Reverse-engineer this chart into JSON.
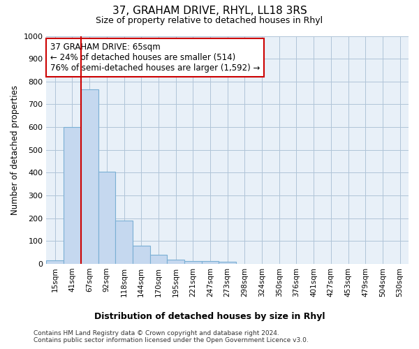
{
  "title": "37, GRAHAM DRIVE, RHYL, LL18 3RS",
  "subtitle": "Size of property relative to detached houses in Rhyl",
  "xlabel": "Distribution of detached houses by size in Rhyl",
  "ylabel": "Number of detached properties",
  "categories": [
    "15sqm",
    "41sqm",
    "67sqm",
    "92sqm",
    "118sqm",
    "144sqm",
    "170sqm",
    "195sqm",
    "221sqm",
    "247sqm",
    "273sqm",
    "298sqm",
    "324sqm",
    "350sqm",
    "376sqm",
    "401sqm",
    "427sqm",
    "453sqm",
    "479sqm",
    "504sqm",
    "530sqm"
  ],
  "values": [
    15,
    600,
    765,
    405,
    190,
    80,
    40,
    18,
    12,
    12,
    8,
    0,
    0,
    0,
    0,
    0,
    0,
    0,
    0,
    0,
    0
  ],
  "bar_color": "#c5d8ef",
  "bar_edge_color": "#7aafd4",
  "vline_x": 2.0,
  "vline_color": "#cc0000",
  "annotation_text": "37 GRAHAM DRIVE: 65sqm\n← 24% of detached houses are smaller (514)\n76% of semi-detached houses are larger (1,592) →",
  "annotation_box_color": "white",
  "annotation_box_edge": "#cc0000",
  "ylim": [
    0,
    1000
  ],
  "yticks": [
    0,
    100,
    200,
    300,
    400,
    500,
    600,
    700,
    800,
    900,
    1000
  ],
  "footer_line1": "Contains HM Land Registry data © Crown copyright and database right 2024.",
  "footer_line2": "Contains public sector information licensed under the Open Government Licence v3.0.",
  "bg_color": "#ffffff",
  "plot_bg_color": "#e8f0f8"
}
